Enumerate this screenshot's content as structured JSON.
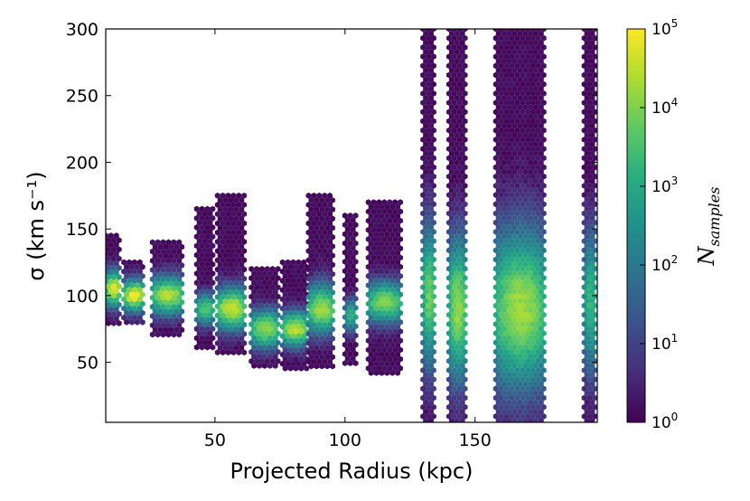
{
  "chart_data": {
    "type": "heatmap",
    "subtype": "hexbin",
    "xlabel": "Projected Radius (kpc)",
    "ylabel": "σ (km s⁻¹)",
    "xlim": [
      8,
      197
    ],
    "ylim": [
      5,
      300
    ],
    "x_ticks": [
      50,
      100,
      150
    ],
    "y_ticks": [
      50,
      100,
      150,
      200,
      250,
      300
    ],
    "x_tick_labels": [
      "50",
      "100",
      "150"
    ],
    "y_tick_labels": [
      "50",
      "100",
      "150",
      "200",
      "250",
      "300"
    ],
    "colormap": "viridis",
    "colorbar": {
      "label": "N_samples",
      "label_parts": {
        "base": "N",
        "subscript": "samples"
      },
      "scale": "log",
      "range": [
        1,
        100000
      ],
      "tick_values": [
        1,
        10,
        100,
        1000,
        10000,
        100000
      ],
      "tick_labels": [
        {
          "base": "10",
          "exp": "0"
        },
        {
          "base": "10",
          "exp": "1"
        },
        {
          "base": "10",
          "exp": "2"
        },
        {
          "base": "10",
          "exp": "3"
        },
        {
          "base": "10",
          "exp": "4"
        },
        {
          "base": "10",
          "exp": "5"
        }
      ]
    },
    "colors": [
      "#440154",
      "#472d7b",
      "#3b528b",
      "#2c728e",
      "#21918c",
      "#28ae80",
      "#5ec962",
      "#addc30",
      "#fde725"
    ],
    "columns": [
      {
        "x": [
          8,
          14
        ],
        "y_min": 78,
        "y_max": 145,
        "peak_y": 105,
        "peak": 4.8,
        "width": 10
      },
      {
        "x": [
          15,
          23
        ],
        "y_min": 78,
        "y_max": 125,
        "peak_y": 100,
        "peak": 4.9,
        "width": 9
      },
      {
        "x": [
          26,
          38
        ],
        "y_min": 70,
        "y_max": 140,
        "peak_y": 100,
        "peak": 4.4,
        "width": 11
      },
      {
        "x": [
          43,
          50
        ],
        "y_min": 60,
        "y_max": 165,
        "peak_y": 90,
        "peak": 3.6,
        "width": 9
      },
      {
        "x": [
          51,
          62
        ],
        "y_min": 55,
        "y_max": 175,
        "peak_y": 90,
        "peak": 4.6,
        "width": 12
      },
      {
        "x": [
          64,
          75
        ],
        "y_min": 45,
        "y_max": 120,
        "peak_y": 75,
        "peak": 4.1,
        "width": 11
      },
      {
        "x": [
          76,
          86
        ],
        "y_min": 45,
        "y_max": 125,
        "peak_y": 75,
        "peak": 4.5,
        "width": 10
      },
      {
        "x": [
          86,
          96
        ],
        "y_min": 45,
        "y_max": 175,
        "peak_y": 90,
        "peak": 4.3,
        "width": 14
      },
      {
        "x": [
          100,
          105
        ],
        "y_min": 48,
        "y_max": 160,
        "peak_y": 85,
        "peak": 3.2,
        "width": 9
      },
      {
        "x": [
          109,
          122
        ],
        "y_min": 40,
        "y_max": 170,
        "peak_y": 95,
        "peak": 4.0,
        "width": 12
      },
      {
        "x": [
          130,
          135
        ],
        "y_min": 5,
        "y_max": 300,
        "peak_y": 100,
        "peak": 3.9,
        "width": 40
      },
      {
        "x": [
          140,
          147
        ],
        "y_min": 5,
        "y_max": 300,
        "peak_y": 90,
        "peak": 4.2,
        "width": 40
      },
      {
        "x": [
          158,
          177
        ],
        "y_min": 5,
        "y_max": 300,
        "peak_y": 90,
        "peak": 4.3,
        "width": 45
      },
      {
        "x": [
          192,
          197
        ],
        "y_min": 5,
        "y_max": 300,
        "peak_y": 95,
        "peak": 3.3,
        "width": 40
      }
    ]
  }
}
